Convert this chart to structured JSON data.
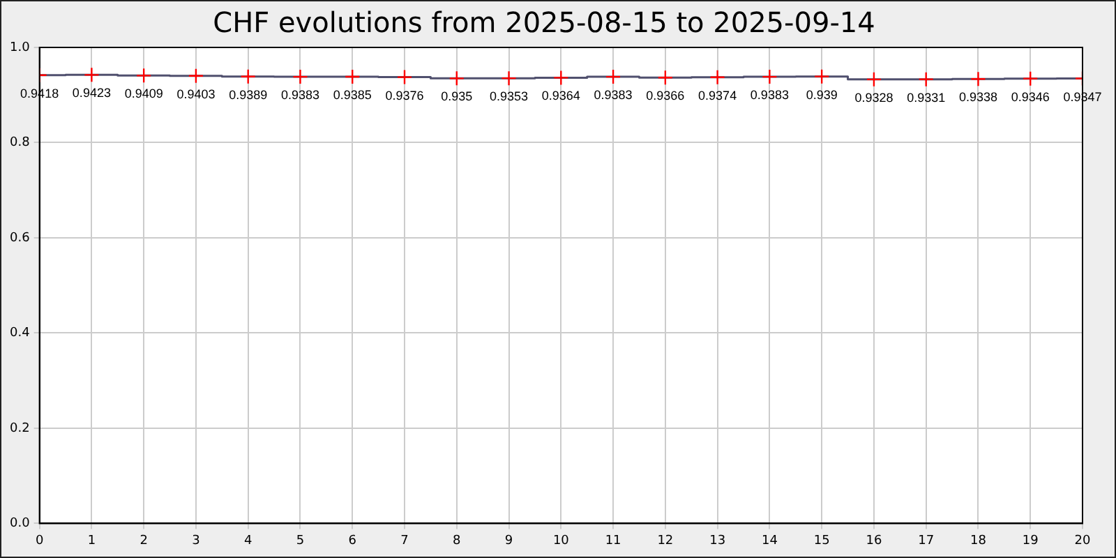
{
  "chart_data": {
    "type": "step",
    "title": "CHF evolutions from 2025-08-15 to 2025-09-14",
    "x": [
      0,
      1,
      2,
      3,
      4,
      5,
      6,
      7,
      8,
      9,
      10,
      11,
      12,
      13,
      14,
      15,
      16,
      17,
      18,
      19,
      20
    ],
    "series": [
      {
        "color": "#50506e",
        "colors": [
          "#ff0000",
          "#ff0000",
          "#ff0000",
          "#ff0000",
          "#ff0000",
          "#ff0000",
          "#ff0000",
          "#ff0000",
          "#ff0000",
          "#ff0000",
          "#ff0000",
          "#ff0000",
          "#ff0000",
          "#ff0000",
          "#ff0000",
          "#ff0000",
          "#ff0000",
          "#ff0000",
          "#ff0000",
          "#ff0000",
          "#ff0000"
        ],
        "values": [
          0.9418,
          0.9423,
          0.9409,
          0.9403,
          0.9389,
          0.9383,
          0.9385,
          0.9376,
          0.935,
          0.9353,
          0.9364,
          0.9383,
          0.9366,
          0.9374,
          0.9383,
          0.939,
          0.9328,
          0.9331,
          0.9338,
          0.9346,
          0.9347
        ]
      }
    ],
    "xlim": [
      0,
      20
    ],
    "xticks": [
      0,
      1,
      2,
      3,
      4,
      5,
      6,
      7,
      8,
      9,
      10,
      11,
      12,
      13,
      14,
      15,
      16,
      17,
      18,
      19,
      20
    ],
    "ylim": [
      0,
      1
    ],
    "yticks": [
      {
        "value": 0,
        "label": "0.0"
      },
      {
        "value": 0.2,
        "label": "0.2"
      },
      {
        "value": 0.4,
        "label": "0.4"
      },
      {
        "value": 0.6,
        "label": "0.6"
      },
      {
        "value": 0.8,
        "label": "0.8"
      },
      {
        "value": 1,
        "label": "1.0"
      }
    ],
    "grid": true,
    "marker": "cross",
    "line_style": "solid",
    "data_labels": true,
    "legend": false
  }
}
